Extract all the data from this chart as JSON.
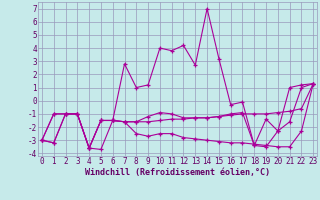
{
  "xlabel": "Windchill (Refroidissement éolien,°C)",
  "background_color": "#c6eaea",
  "line_color": "#aa0099",
  "grid_color": "#9999bb",
  "x": [
    0,
    1,
    2,
    3,
    4,
    5,
    6,
    7,
    8,
    9,
    10,
    11,
    12,
    13,
    14,
    15,
    16,
    17,
    18,
    19,
    20,
    21,
    22,
    23
  ],
  "series": [
    [
      -3.0,
      -3.2,
      -1.0,
      -1.0,
      -3.6,
      -3.7,
      -1.5,
      2.8,
      1.0,
      1.2,
      4.0,
      3.8,
      4.2,
      2.7,
      7.0,
      3.2,
      -0.3,
      -0.1,
      -3.4,
      -1.4,
      -2.3,
      1.0,
      1.2,
      1.3
    ],
    [
      -3.0,
      -3.2,
      -1.0,
      -1.0,
      -3.6,
      -1.5,
      -1.5,
      -1.6,
      -1.6,
      -1.2,
      -0.9,
      -1.0,
      -1.3,
      -1.3,
      -1.3,
      -1.2,
      -1.0,
      -0.9,
      -3.4,
      -3.5,
      -2.3,
      -1.6,
      1.0,
      1.3
    ],
    [
      -3.0,
      -1.0,
      -1.0,
      -1.0,
      -3.6,
      -1.5,
      -1.5,
      -1.6,
      -2.5,
      -2.7,
      -2.5,
      -2.5,
      -2.8,
      -2.9,
      -3.0,
      -3.1,
      -3.2,
      -3.2,
      -3.3,
      -3.4,
      -3.5,
      -3.5,
      -2.3,
      1.3
    ],
    [
      -3.0,
      -1.0,
      -1.0,
      -1.0,
      -3.6,
      -1.5,
      -1.5,
      -1.6,
      -1.6,
      -1.6,
      -1.5,
      -1.4,
      -1.4,
      -1.3,
      -1.3,
      -1.2,
      -1.1,
      -1.0,
      -1.0,
      -1.0,
      -0.9,
      -0.8,
      -0.6,
      1.3
    ]
  ],
  "ylim": [
    -4.2,
    7.5
  ],
  "xlim": [
    -0.3,
    23.3
  ],
  "yticks": [
    -4,
    -3,
    -2,
    -1,
    0,
    1,
    2,
    3,
    4,
    5,
    6,
    7
  ],
  "xticks": [
    0,
    1,
    2,
    3,
    4,
    5,
    6,
    7,
    8,
    9,
    10,
    11,
    12,
    13,
    14,
    15,
    16,
    17,
    18,
    19,
    20,
    21,
    22,
    23
  ],
  "tick_fontsize": 5.5,
  "xlabel_fontsize": 6.0
}
